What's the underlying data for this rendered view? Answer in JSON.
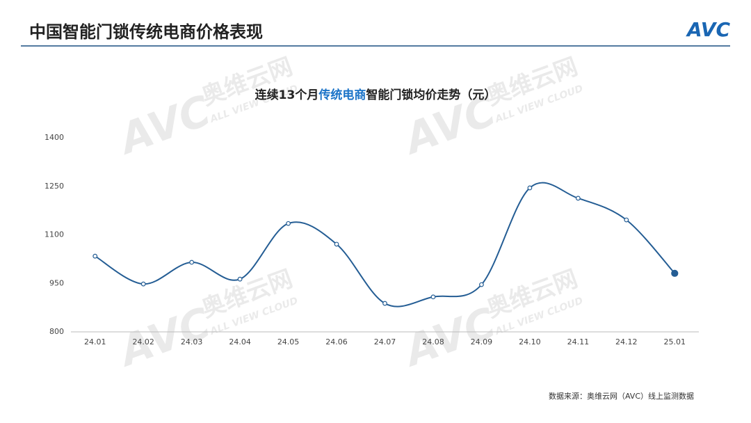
{
  "header": {
    "title": "中国智能门锁传统电商价格表现",
    "logo": "AVC"
  },
  "watermark": {
    "name": "奥维云网",
    "sub": "ALL VIEW CLOUD"
  },
  "chart_data": {
    "type": "line",
    "title_parts": [
      "连续13个月",
      "传统电商",
      "智能门锁均价走势（元）"
    ],
    "categories": [
      "24.01",
      "24.02",
      "24.03",
      "24.04",
      "24.05",
      "24.06",
      "24.07",
      "24.08",
      "24.09",
      "24.10",
      "24.11",
      "24.12",
      "25.01"
    ],
    "values": [
      1034,
      948,
      1015,
      963,
      1135,
      1071,
      888,
      908,
      946,
      1245,
      1213,
      1146,
      981
    ],
    "color": "#245d94",
    "ylim": [
      800,
      1400
    ],
    "yticks": [
      800,
      950,
      1100,
      1250,
      1400
    ],
    "grid": false,
    "source": "数据来源：奥维云网（AVC）线上监测数据"
  }
}
